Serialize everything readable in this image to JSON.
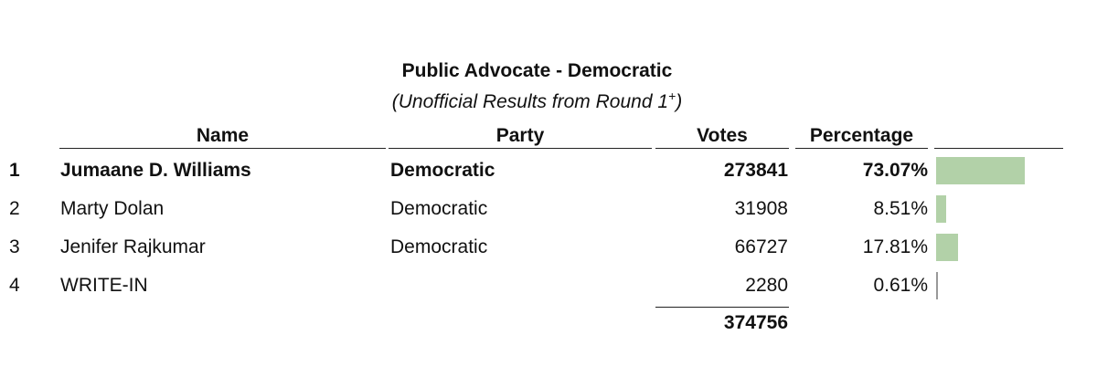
{
  "title": "Public Advocate - Democratic",
  "subtitle": {
    "text": "(Unofficial Results from Round 1",
    "sup": "+",
    "close": ")"
  },
  "table": {
    "headers": [
      "Name",
      "Party",
      "Votes",
      "Percentage"
    ],
    "rows": [
      {
        "rank": 1,
        "name": "Jumaane D. Williams",
        "party": "Democratic",
        "votes": 273841,
        "percentage": {
          "value": 73.07,
          "label": "73.07%"
        }
      },
      {
        "rank": 2,
        "name": "Marty Dolan",
        "party": "Democratic",
        "votes": 31908,
        "percentage": {
          "value": 8.51,
          "label": "8.51%"
        }
      },
      {
        "rank": 3,
        "name": "Jenifer Rajkumar",
        "party": "Democratic",
        "votes": 66727,
        "percentage": {
          "value": 17.81,
          "label": "17.81%"
        }
      },
      {
        "rank": 4,
        "name": "WRITE-IN",
        "votes": 2280,
        "percentage": {
          "value": 0.61,
          "label": "0.61%"
        }
      }
    ],
    "total_votes": 374756
  }
}
